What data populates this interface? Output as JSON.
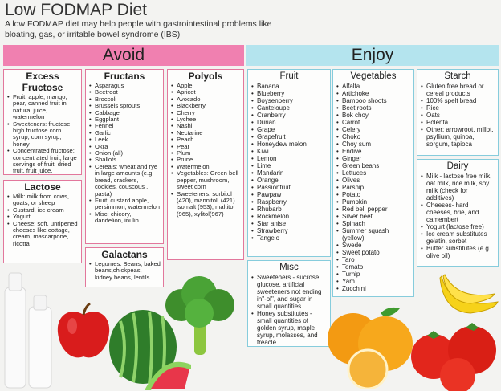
{
  "header": {
    "title": "Low FODMAP Diet",
    "subtitle": "A low FODMAP diet may help people with gastrointestinal problems like bloating, gas, or irritable bowel syndrome (IBS)"
  },
  "avoid": {
    "heading": "Avoid",
    "excess_fructose": {
      "title": "Excess Fructose",
      "items": [
        "Fruit: apple, mango, pear, canned fruit in natural juice, watermelon",
        "Sweeteners: fructose, high fructose corn syrup, corn syrup, honey",
        "Concentrated fructose: concentrated fruit, large servings of fruit, dried fruit, fruit juice."
      ]
    },
    "lactose": {
      "title": "Lactose",
      "items": [
        "Milk: milk from cows, goats, or sheep",
        "Custard, ice cream",
        "Yogurt",
        "Cheese: soft, unripened cheeses like cottage, cream, mascarpone, ricotta"
      ]
    },
    "fructans": {
      "title": "Fructans",
      "items": [
        "Asparagus",
        "Beetroot",
        "Broccoli",
        "Brussels sprouts",
        "Cabbage",
        "Eggplant",
        "Fennel",
        "Garlic",
        "Leek",
        "Okra",
        "Onion (all)",
        "Shallots",
        "Cereals: wheat and rye in large amounts (e.g. bread, crackers, cookies, couscous , pasta)",
        "Fruit: custard apple, persimmon, watermelon",
        "Misc: chicory, dandelion, inulin"
      ]
    },
    "galactans": {
      "title": "Galactans",
      "items": [
        "Legumes: Beans, baked beans,chickpeas, kidney beans, lentils"
      ]
    },
    "polyols": {
      "title": "Polyols",
      "items": [
        "Apple",
        "Apricot",
        "Avocado",
        "Blackberry",
        "Cherry",
        "Lychee",
        "Nashi",
        "Nectarine",
        "Peach",
        "Pear",
        "Plum",
        "Prune",
        "Watermelon",
        "Vegetables: Green bell pepper, mushroom, sweet corn",
        "Sweeteners: sorbitol (420), mannitol, (421) isomalt (953), maltitol (965), xylitol(967)"
      ]
    }
  },
  "enjoy": {
    "heading": "Enjoy",
    "fruit": {
      "title": "Fruit",
      "items": [
        "Banana",
        "Blueberry",
        "Boysenberry",
        "Canteloupe",
        "Cranberry",
        "Durian",
        "Grape",
        "Grapefruit",
        "Honeydew melon",
        "Kiwi",
        "Lemon",
        "Lime",
        "Mandarin",
        "Orange",
        "Passionfruit",
        "Pawpaw",
        "Raspberry",
        "Rhubarb",
        "Rockmelon",
        "Star anise",
        "Strawberry",
        "Tangelo"
      ]
    },
    "vegetables": {
      "title": "Vegetables",
      "items": [
        "Alfalfa",
        "Artichoke",
        "Bamboo shoots",
        "Beet roots",
        "Bok choy",
        "Carrot",
        "Celery",
        "Choko",
        "Choy sum",
        "Endive",
        "Ginger",
        "Green beans",
        "Lettuces",
        "Olives",
        "Parsnip",
        "Potato",
        "Pumpkin",
        "Red bell pepper",
        "Silver beet",
        "Spinach",
        "Summer squash (yellow)",
        "Swede",
        "Sweet potato",
        "Taro",
        "Tomato",
        "Turnip",
        "Yam",
        "Zucchini"
      ]
    },
    "starch": {
      "title": "Starch",
      "items": [
        "Gluten free bread or cereal products",
        "100% spelt bread",
        "Rice",
        "Oats",
        "Polenta",
        "Other: arrowroot, millot, psyllium, quinoa, sorgum, tapioca"
      ]
    },
    "dairy": {
      "title": "Dairy",
      "items": [
        "Milk - lactose free milk, oat milk, rice milk, soy milk (check for additives)",
        "Cheeses- hard cheeses, brie, and camembert",
        "Yogurt (lactose free)",
        "Ice cream substitutes gelatin, sorbet",
        "Butter substitutes (e.g olive oil)"
      ]
    },
    "misc": {
      "title": "Misc",
      "items": [
        "Sweeteners - sucrose, glucose, artificial sweeteners not ending in\"-ol\", and sugar in small quantities",
        "Honey substitutes - small quantities of golden syrup, maple syrup, molasses, and treacle"
      ]
    }
  },
  "colors": {
    "avoid_band": "#f080b0",
    "enjoy_band": "#b4e4ee",
    "avoid_border": "#e2779c",
    "enjoy_border": "#86ccdc"
  },
  "illustrations": [
    "milk-bottles-image",
    "apple-image",
    "watermelon-image",
    "broccoli-image",
    "oranges-image",
    "bananas-image",
    "tomatoes-image"
  ]
}
